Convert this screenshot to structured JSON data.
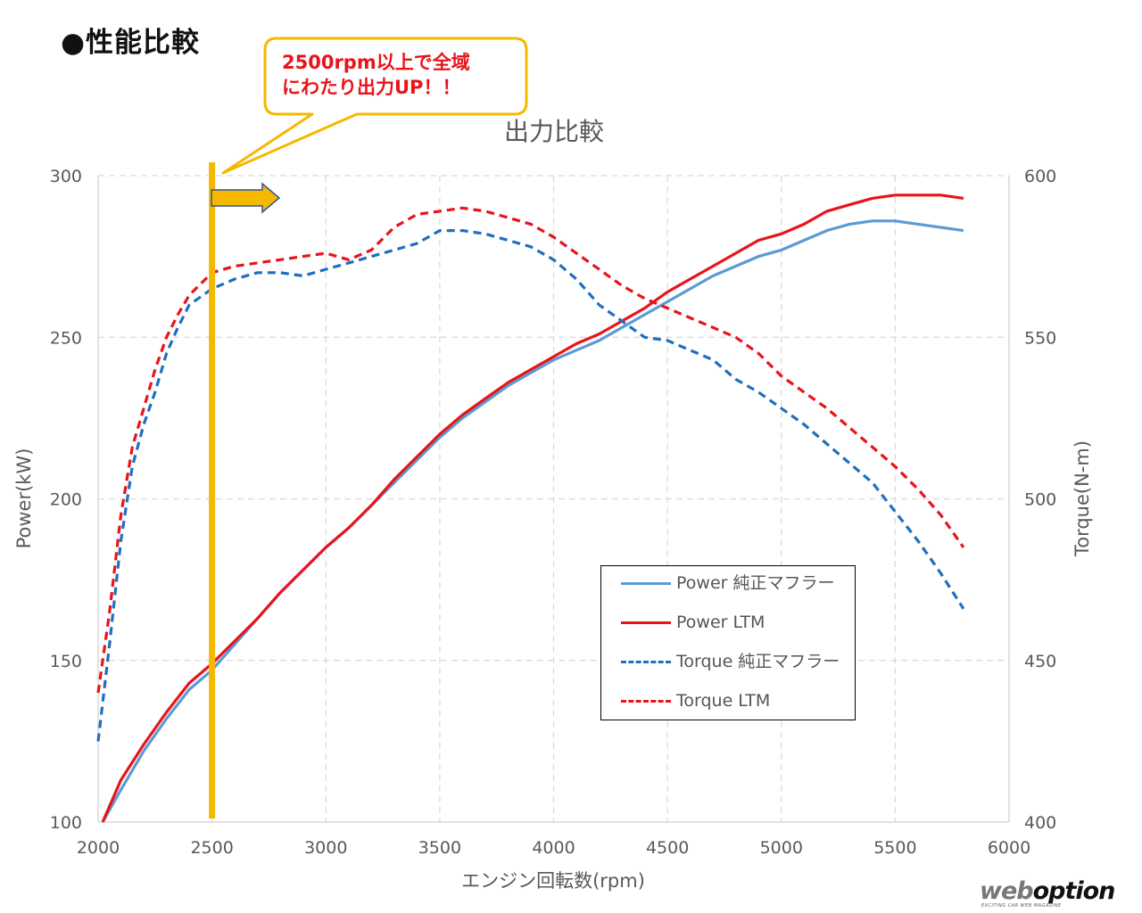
{
  "heading": "●性能比較",
  "callout": {
    "line1": "2500rpm以上で全域",
    "line2": "にわたり出力UP！！"
  },
  "watermark": {
    "web": "web",
    "option": "option",
    "tagline": "EXCITING CAR WEB MAGAZINE"
  },
  "colors": {
    "stock": "#5b9bd5",
    "ltm": "#e8141a",
    "torque_stock": "#1f6fbf",
    "highlight": "#f5b800",
    "grid": "#d9d9d9",
    "axis_text": "#595959"
  },
  "chart_data": {
    "type": "line",
    "title": "出力比較",
    "xlabel": "エンジン回転数(rpm)",
    "ylabel": "Power(kW)",
    "y2label": "Torque(N-m)",
    "xlim": [
      2000,
      6000
    ],
    "ylim": [
      100,
      300
    ],
    "y2lim": [
      400,
      600
    ],
    "xticks": [
      2000,
      2500,
      3000,
      3500,
      4000,
      4500,
      5000,
      5500,
      6000
    ],
    "yticks": [
      100,
      150,
      200,
      250,
      300
    ],
    "y2ticks": [
      400,
      450,
      500,
      550,
      600
    ],
    "grid": true,
    "marker_line_x": 2500,
    "arrow_label": "",
    "legend_position": "lower-right",
    "series": [
      {
        "name": "Power 純正マフラー",
        "axis": "left",
        "style": "solid",
        "color": "#5b9bd5",
        "x": [
          2020,
          2100,
          2200,
          2300,
          2400,
          2500,
          2600,
          2700,
          2800,
          2900,
          3000,
          3100,
          3200,
          3300,
          3400,
          3500,
          3600,
          3700,
          3800,
          3900,
          4000,
          4100,
          4200,
          4300,
          4400,
          4500,
          4600,
          4700,
          4800,
          4900,
          5000,
          5100,
          5200,
          5300,
          5400,
          5500,
          5600,
          5700,
          5800
        ],
        "values": [
          100,
          110,
          122,
          132,
          141,
          147,
          155,
          163,
          171,
          178,
          185,
          191,
          198,
          205,
          212,
          219,
          225,
          230,
          235,
          239,
          243,
          246,
          249,
          253,
          257,
          261,
          265,
          269,
          272,
          275,
          277,
          280,
          283,
          285,
          286,
          286,
          285,
          284,
          283
        ]
      },
      {
        "name": "Power LTM",
        "axis": "left",
        "style": "solid",
        "color": "#e8141a",
        "x": [
          2020,
          2100,
          2200,
          2300,
          2400,
          2500,
          2600,
          2700,
          2800,
          2900,
          3000,
          3100,
          3200,
          3300,
          3400,
          3500,
          3600,
          3700,
          3800,
          3900,
          4000,
          4100,
          4200,
          4300,
          4400,
          4500,
          4600,
          4700,
          4800,
          4900,
          5000,
          5100,
          5200,
          5300,
          5400,
          5500,
          5600,
          5700,
          5800
        ],
        "values": [
          100,
          113,
          124,
          134,
          143,
          149,
          156,
          163,
          171,
          178,
          185,
          191,
          198,
          206,
          213,
          220,
          226,
          231,
          236,
          240,
          244,
          248,
          251,
          255,
          259,
          264,
          268,
          272,
          276,
          280,
          282,
          285,
          289,
          291,
          293,
          294,
          294,
          294,
          293
        ]
      },
      {
        "name": "Torque 純正マフラー",
        "axis": "right",
        "style": "dashed",
        "color": "#1f6fbf",
        "x": [
          2000,
          2050,
          2100,
          2150,
          2200,
          2250,
          2300,
          2350,
          2400,
          2500,
          2600,
          2700,
          2800,
          2900,
          3000,
          3100,
          3200,
          3300,
          3400,
          3500,
          3600,
          3700,
          3800,
          3900,
          4000,
          4100,
          4200,
          4300,
          4400,
          4500,
          4600,
          4700,
          4800,
          4900,
          5000,
          5100,
          5200,
          5300,
          5400,
          5500,
          5600,
          5700,
          5800
        ],
        "values": [
          425,
          455,
          487,
          510,
          523,
          533,
          545,
          553,
          560,
          565,
          568,
          570,
          570,
          569,
          571,
          573,
          575,
          577,
          579,
          583,
          583,
          582,
          580,
          578,
          574,
          568,
          560,
          555,
          550,
          549,
          546,
          543,
          537,
          533,
          528,
          523,
          517,
          511,
          505,
          496,
          487,
          477,
          466
        ]
      },
      {
        "name": "Torque LTM",
        "axis": "right",
        "style": "dashed",
        "color": "#e8141a",
        "x": [
          2000,
          2050,
          2100,
          2150,
          2200,
          2250,
          2300,
          2350,
          2400,
          2500,
          2600,
          2700,
          2800,
          2900,
          3000,
          3100,
          3200,
          3300,
          3400,
          3500,
          3600,
          3700,
          3800,
          3900,
          4000,
          4100,
          4200,
          4300,
          4400,
          4500,
          4600,
          4700,
          4800,
          4900,
          5000,
          5100,
          5200,
          5300,
          5400,
          5500,
          5600,
          5700,
          5800
        ],
        "values": [
          440,
          465,
          495,
          516,
          528,
          540,
          550,
          557,
          563,
          570,
          572,
          573,
          574,
          575,
          576,
          574,
          577,
          584,
          588,
          589,
          590,
          589,
          587,
          585,
          581,
          576,
          571,
          566,
          562,
          559,
          556,
          553,
          550,
          545,
          538,
          533,
          528,
          522,
          516,
          510,
          503,
          495,
          485
        ]
      }
    ]
  }
}
